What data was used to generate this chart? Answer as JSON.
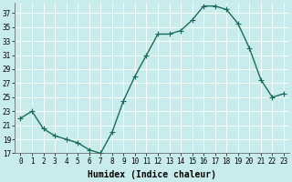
{
  "x": [
    0,
    1,
    2,
    3,
    4,
    5,
    6,
    7,
    8,
    9,
    10,
    11,
    12,
    13,
    14,
    15,
    16,
    17,
    18,
    19,
    20,
    21,
    22,
    23
  ],
  "y": [
    22.0,
    23.0,
    20.5,
    19.5,
    19.0,
    18.5,
    17.5,
    17.0,
    20.0,
    24.5,
    28.0,
    31.0,
    34.0,
    34.0,
    34.5,
    36.0,
    38.0,
    38.0,
    37.5,
    35.5,
    32.0,
    27.5,
    25.0,
    25.5
  ],
  "xlabel": "Humidex (Indice chaleur)",
  "ylim": [
    17,
    38
  ],
  "yticks": [
    17,
    19,
    21,
    23,
    25,
    27,
    29,
    31,
    33,
    35,
    37
  ],
  "xticks": [
    0,
    1,
    2,
    3,
    4,
    5,
    6,
    7,
    8,
    9,
    10,
    11,
    12,
    13,
    14,
    15,
    16,
    17,
    18,
    19,
    20,
    21,
    22,
    23
  ],
  "line_color": "#1a6b5a",
  "marker": "+",
  "bg_color": "#c8ecec",
  "grid_color": "#ffffff",
  "marker_size": 4,
  "line_width": 1.0,
  "xlabel_fontsize": 7,
  "tick_fontsize": 5.5,
  "spine_color": "#555555"
}
